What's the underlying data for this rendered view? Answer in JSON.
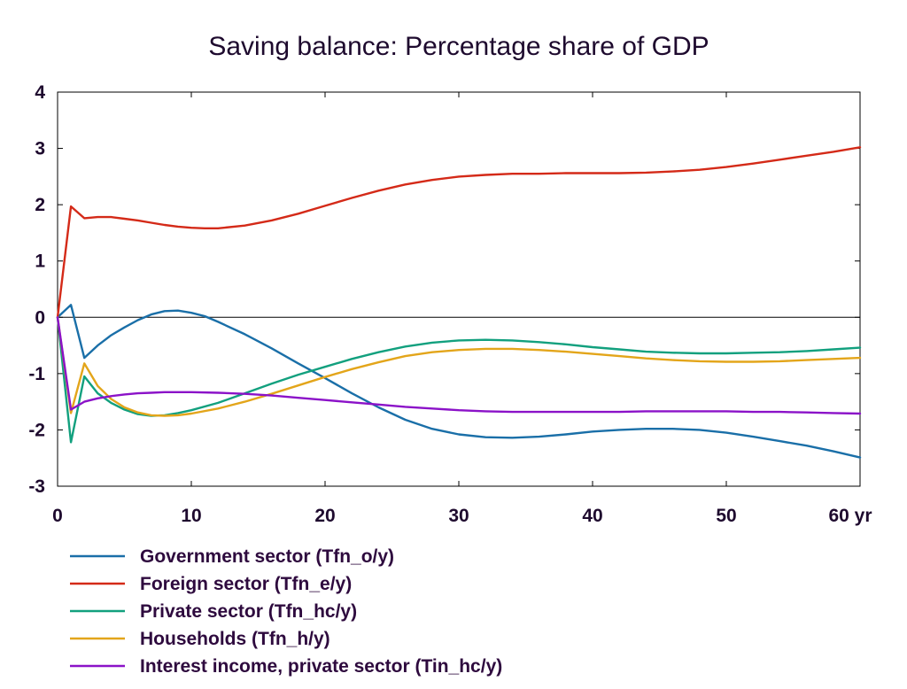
{
  "chart_data": {
    "type": "line",
    "title": "Saving balance: Percentage share of GDP",
    "xlabel": "",
    "ylabel": "",
    "xlim": [
      0,
      60
    ],
    "ylim": [
      -3,
      4
    ],
    "x_ticks": [
      {
        "value": 0,
        "label": "0"
      },
      {
        "value": 10,
        "label": "10"
      },
      {
        "value": 20,
        "label": "20"
      },
      {
        "value": 30,
        "label": "30"
      },
      {
        "value": 40,
        "label": "40"
      },
      {
        "value": 50,
        "label": "50"
      },
      {
        "value": 60,
        "label": "60 yr"
      }
    ],
    "y_ticks": [
      {
        "value": 4,
        "label": "4"
      },
      {
        "value": 3,
        "label": "3"
      },
      {
        "value": 2,
        "label": "2"
      },
      {
        "value": 1,
        "label": "1"
      },
      {
        "value": 0,
        "label": "0"
      },
      {
        "value": -1,
        "label": "-1"
      },
      {
        "value": -2,
        "label": "-2"
      },
      {
        "value": -3,
        "label": "-3"
      }
    ],
    "legend_position": "bottom-left",
    "series": [
      {
        "name": "Government sector (Tfn_o/y)",
        "color": "#1a6fa8",
        "points": [
          [
            0,
            0
          ],
          [
            1,
            0.22
          ],
          [
            2,
            -0.72
          ],
          [
            3,
            -0.5
          ],
          [
            4,
            -0.32
          ],
          [
            5,
            -0.18
          ],
          [
            6,
            -0.05
          ],
          [
            7,
            0.05
          ],
          [
            8,
            0.11
          ],
          [
            9,
            0.12
          ],
          [
            10,
            0.08
          ],
          [
            11,
            0.02
          ],
          [
            12,
            -0.08
          ],
          [
            14,
            -0.3
          ],
          [
            16,
            -0.55
          ],
          [
            18,
            -0.82
          ],
          [
            20,
            -1.08
          ],
          [
            22,
            -1.35
          ],
          [
            24,
            -1.6
          ],
          [
            26,
            -1.82
          ],
          [
            28,
            -1.98
          ],
          [
            30,
            -2.08
          ],
          [
            32,
            -2.13
          ],
          [
            34,
            -2.14
          ],
          [
            36,
            -2.12
          ],
          [
            38,
            -2.08
          ],
          [
            40,
            -2.03
          ],
          [
            42,
            -2.0
          ],
          [
            44,
            -1.98
          ],
          [
            46,
            -1.98
          ],
          [
            48,
            -2.0
          ],
          [
            50,
            -2.05
          ],
          [
            52,
            -2.12
          ],
          [
            54,
            -2.2
          ],
          [
            56,
            -2.28
          ],
          [
            58,
            -2.38
          ],
          [
            60,
            -2.49
          ]
        ]
      },
      {
        "name": "Foreign sector (Tfn_e/y)",
        "color": "#d42a18",
        "points": [
          [
            0,
            0
          ],
          [
            1,
            1.97
          ],
          [
            2,
            1.76
          ],
          [
            3,
            1.78
          ],
          [
            4,
            1.78
          ],
          [
            5,
            1.75
          ],
          [
            6,
            1.72
          ],
          [
            7,
            1.68
          ],
          [
            8,
            1.64
          ],
          [
            9,
            1.61
          ],
          [
            10,
            1.59
          ],
          [
            11,
            1.58
          ],
          [
            12,
            1.58
          ],
          [
            14,
            1.63
          ],
          [
            16,
            1.72
          ],
          [
            18,
            1.84
          ],
          [
            20,
            1.98
          ],
          [
            22,
            2.12
          ],
          [
            24,
            2.25
          ],
          [
            26,
            2.36
          ],
          [
            28,
            2.44
          ],
          [
            30,
            2.5
          ],
          [
            32,
            2.53
          ],
          [
            34,
            2.55
          ],
          [
            36,
            2.55
          ],
          [
            38,
            2.56
          ],
          [
            40,
            2.56
          ],
          [
            42,
            2.56
          ],
          [
            44,
            2.57
          ],
          [
            46,
            2.59
          ],
          [
            48,
            2.62
          ],
          [
            50,
            2.67
          ],
          [
            52,
            2.73
          ],
          [
            54,
            2.8
          ],
          [
            56,
            2.87
          ],
          [
            58,
            2.94
          ],
          [
            60,
            3.02
          ]
        ]
      },
      {
        "name": "Private sector (Tfn_hc/y)",
        "color": "#12a07e",
        "points": [
          [
            0,
            0
          ],
          [
            1,
            -2.22
          ],
          [
            2,
            -1.05
          ],
          [
            3,
            -1.35
          ],
          [
            4,
            -1.52
          ],
          [
            5,
            -1.64
          ],
          [
            6,
            -1.72
          ],
          [
            7,
            -1.75
          ],
          [
            8,
            -1.74
          ],
          [
            9,
            -1.7
          ],
          [
            10,
            -1.65
          ],
          [
            12,
            -1.52
          ],
          [
            14,
            -1.35
          ],
          [
            16,
            -1.18
          ],
          [
            18,
            -1.02
          ],
          [
            20,
            -0.88
          ],
          [
            22,
            -0.74
          ],
          [
            24,
            -0.62
          ],
          [
            26,
            -0.52
          ],
          [
            28,
            -0.45
          ],
          [
            30,
            -0.41
          ],
          [
            32,
            -0.4
          ],
          [
            34,
            -0.41
          ],
          [
            36,
            -0.44
          ],
          [
            38,
            -0.48
          ],
          [
            40,
            -0.53
          ],
          [
            42,
            -0.57
          ],
          [
            44,
            -0.61
          ],
          [
            46,
            -0.63
          ],
          [
            48,
            -0.64
          ],
          [
            50,
            -0.64
          ],
          [
            52,
            -0.63
          ],
          [
            54,
            -0.62
          ],
          [
            56,
            -0.6
          ],
          [
            58,
            -0.57
          ],
          [
            60,
            -0.54
          ]
        ]
      },
      {
        "name": "Households (Tfn_h/y)",
        "color": "#e3a51a",
        "points": [
          [
            0,
            0
          ],
          [
            1,
            -1.7
          ],
          [
            2,
            -0.82
          ],
          [
            3,
            -1.22
          ],
          [
            4,
            -1.45
          ],
          [
            5,
            -1.6
          ],
          [
            6,
            -1.69
          ],
          [
            7,
            -1.74
          ],
          [
            8,
            -1.75
          ],
          [
            9,
            -1.74
          ],
          [
            10,
            -1.71
          ],
          [
            12,
            -1.62
          ],
          [
            14,
            -1.5
          ],
          [
            16,
            -1.36
          ],
          [
            18,
            -1.21
          ],
          [
            20,
            -1.06
          ],
          [
            22,
            -0.92
          ],
          [
            24,
            -0.8
          ],
          [
            26,
            -0.69
          ],
          [
            28,
            -0.62
          ],
          [
            30,
            -0.58
          ],
          [
            32,
            -0.56
          ],
          [
            34,
            -0.56
          ],
          [
            36,
            -0.58
          ],
          [
            38,
            -0.61
          ],
          [
            40,
            -0.65
          ],
          [
            42,
            -0.69
          ],
          [
            44,
            -0.73
          ],
          [
            46,
            -0.76
          ],
          [
            48,
            -0.78
          ],
          [
            50,
            -0.79
          ],
          [
            52,
            -0.79
          ],
          [
            54,
            -0.78
          ],
          [
            56,
            -0.76
          ],
          [
            58,
            -0.74
          ],
          [
            60,
            -0.72
          ]
        ]
      },
      {
        "name": "Interest income, private sector (Tin_hc/y)",
        "color": "#8b12c8",
        "points": [
          [
            0,
            0
          ],
          [
            1,
            -1.64
          ],
          [
            2,
            -1.5
          ],
          [
            3,
            -1.44
          ],
          [
            4,
            -1.4
          ],
          [
            5,
            -1.37
          ],
          [
            6,
            -1.35
          ],
          [
            7,
            -1.34
          ],
          [
            8,
            -1.33
          ],
          [
            10,
            -1.33
          ],
          [
            12,
            -1.34
          ],
          [
            14,
            -1.36
          ],
          [
            16,
            -1.39
          ],
          [
            18,
            -1.43
          ],
          [
            20,
            -1.47
          ],
          [
            22,
            -1.51
          ],
          [
            24,
            -1.55
          ],
          [
            26,
            -1.59
          ],
          [
            28,
            -1.62
          ],
          [
            30,
            -1.65
          ],
          [
            32,
            -1.67
          ],
          [
            34,
            -1.68
          ],
          [
            36,
            -1.68
          ],
          [
            38,
            -1.68
          ],
          [
            40,
            -1.68
          ],
          [
            42,
            -1.68
          ],
          [
            44,
            -1.67
          ],
          [
            46,
            -1.67
          ],
          [
            48,
            -1.67
          ],
          [
            50,
            -1.67
          ],
          [
            52,
            -1.68
          ],
          [
            54,
            -1.68
          ],
          [
            56,
            -1.69
          ],
          [
            58,
            -1.7
          ],
          [
            60,
            -1.71
          ]
        ]
      }
    ]
  }
}
